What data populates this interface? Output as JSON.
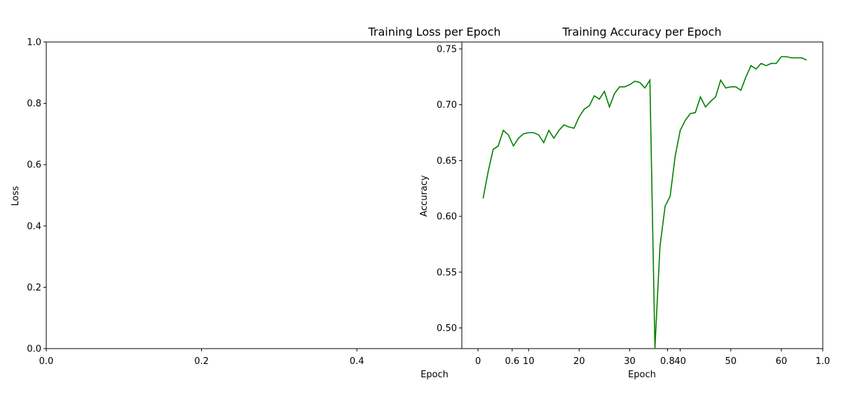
{
  "chart_data": [
    {
      "type": "line",
      "title": "Training Loss per Epoch",
      "xlabel": "Epoch",
      "ylabel": "Loss",
      "xlim": [
        0.0,
        1.0
      ],
      "ylim": [
        0.0,
        1.0
      ],
      "xticks": [
        "0.0",
        "0.2",
        "0.4",
        "0.6",
        "0.8",
        "1.0"
      ],
      "yticks": [
        "0.0",
        "0.2",
        "0.4",
        "0.6",
        "0.8",
        "1.0"
      ],
      "series": [],
      "grid": false
    },
    {
      "type": "line",
      "title": "Training Accuracy per Epoch",
      "xlabel": "Epoch",
      "ylabel": "Accuracy",
      "xlim": [
        -3.2,
        68.2
      ],
      "ylim": [
        0.4815,
        0.7562
      ],
      "xticks": [
        "0",
        "10",
        "20",
        "30",
        "40",
        "50",
        "60"
      ],
      "yticks": [
        "0.50",
        "0.55",
        "0.60",
        "0.65",
        "0.70",
        "0.75"
      ],
      "grid": false,
      "series": [
        {
          "color": "#008000",
          "x": [
            1,
            2,
            3,
            4,
            5,
            6,
            7,
            8,
            9,
            10,
            11,
            12,
            13,
            14,
            15,
            16,
            17,
            18,
            19,
            20,
            21,
            22,
            23,
            24,
            25,
            26,
            27,
            28,
            29,
            30,
            31,
            32,
            33,
            34,
            35,
            36,
            37,
            38,
            39,
            40,
            41,
            42,
            43,
            44,
            45,
            46,
            47,
            48,
            49,
            50,
            51,
            52,
            53,
            54,
            55,
            56,
            57,
            58,
            59,
            60,
            61,
            62,
            63,
            64,
            65
          ],
          "values": [
            0.616,
            0.64,
            0.66,
            0.663,
            0.677,
            0.673,
            0.663,
            0.67,
            0.674,
            0.675,
            0.675,
            0.673,
            0.666,
            0.677,
            0.67,
            0.677,
            0.682,
            0.68,
            0.679,
            0.689,
            0.696,
            0.699,
            0.708,
            0.705,
            0.712,
            0.698,
            0.71,
            0.716,
            0.716,
            0.718,
            0.721,
            0.72,
            0.715,
            0.722,
            0.482,
            0.573,
            0.609,
            0.618,
            0.654,
            0.677,
            0.686,
            0.692,
            0.693,
            0.707,
            0.698,
            0.703,
            0.707,
            0.722,
            0.715,
            0.716,
            0.716,
            0.713,
            0.725,
            0.735,
            0.732,
            0.737,
            0.735,
            0.737,
            0.737,
            0.743,
            0.743,
            0.742,
            0.742,
            0.742,
            0.74
          ]
        }
      ]
    }
  ]
}
